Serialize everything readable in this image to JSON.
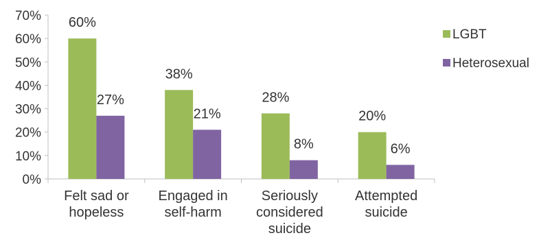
{
  "chart_data": {
    "type": "bar",
    "categories": [
      [
        "Felt sad or",
        "hopeless"
      ],
      [
        "Engaged in",
        "self-harm"
      ],
      [
        "Seriously",
        "considered",
        "suicide"
      ],
      [
        "Attempted",
        "suicide"
      ]
    ],
    "series": [
      {
        "name": "LGBT",
        "values": [
          60,
          38,
          28,
          20
        ],
        "labels": [
          "60%",
          "38%",
          "28%",
          "20%"
        ],
        "color": "#9BBB59"
      },
      {
        "name": "Heterosexual",
        "values": [
          27,
          21,
          8,
          6
        ],
        "labels": [
          "27%",
          "21%",
          "8%",
          "6%"
        ],
        "color": "#8064A2"
      }
    ],
    "y_ticks": [
      "0%",
      "10%",
      "20%",
      "30%",
      "40%",
      "50%",
      "60%",
      "70%"
    ],
    "ylim": [
      0,
      70
    ],
    "grid": false,
    "legend_position": "right"
  }
}
